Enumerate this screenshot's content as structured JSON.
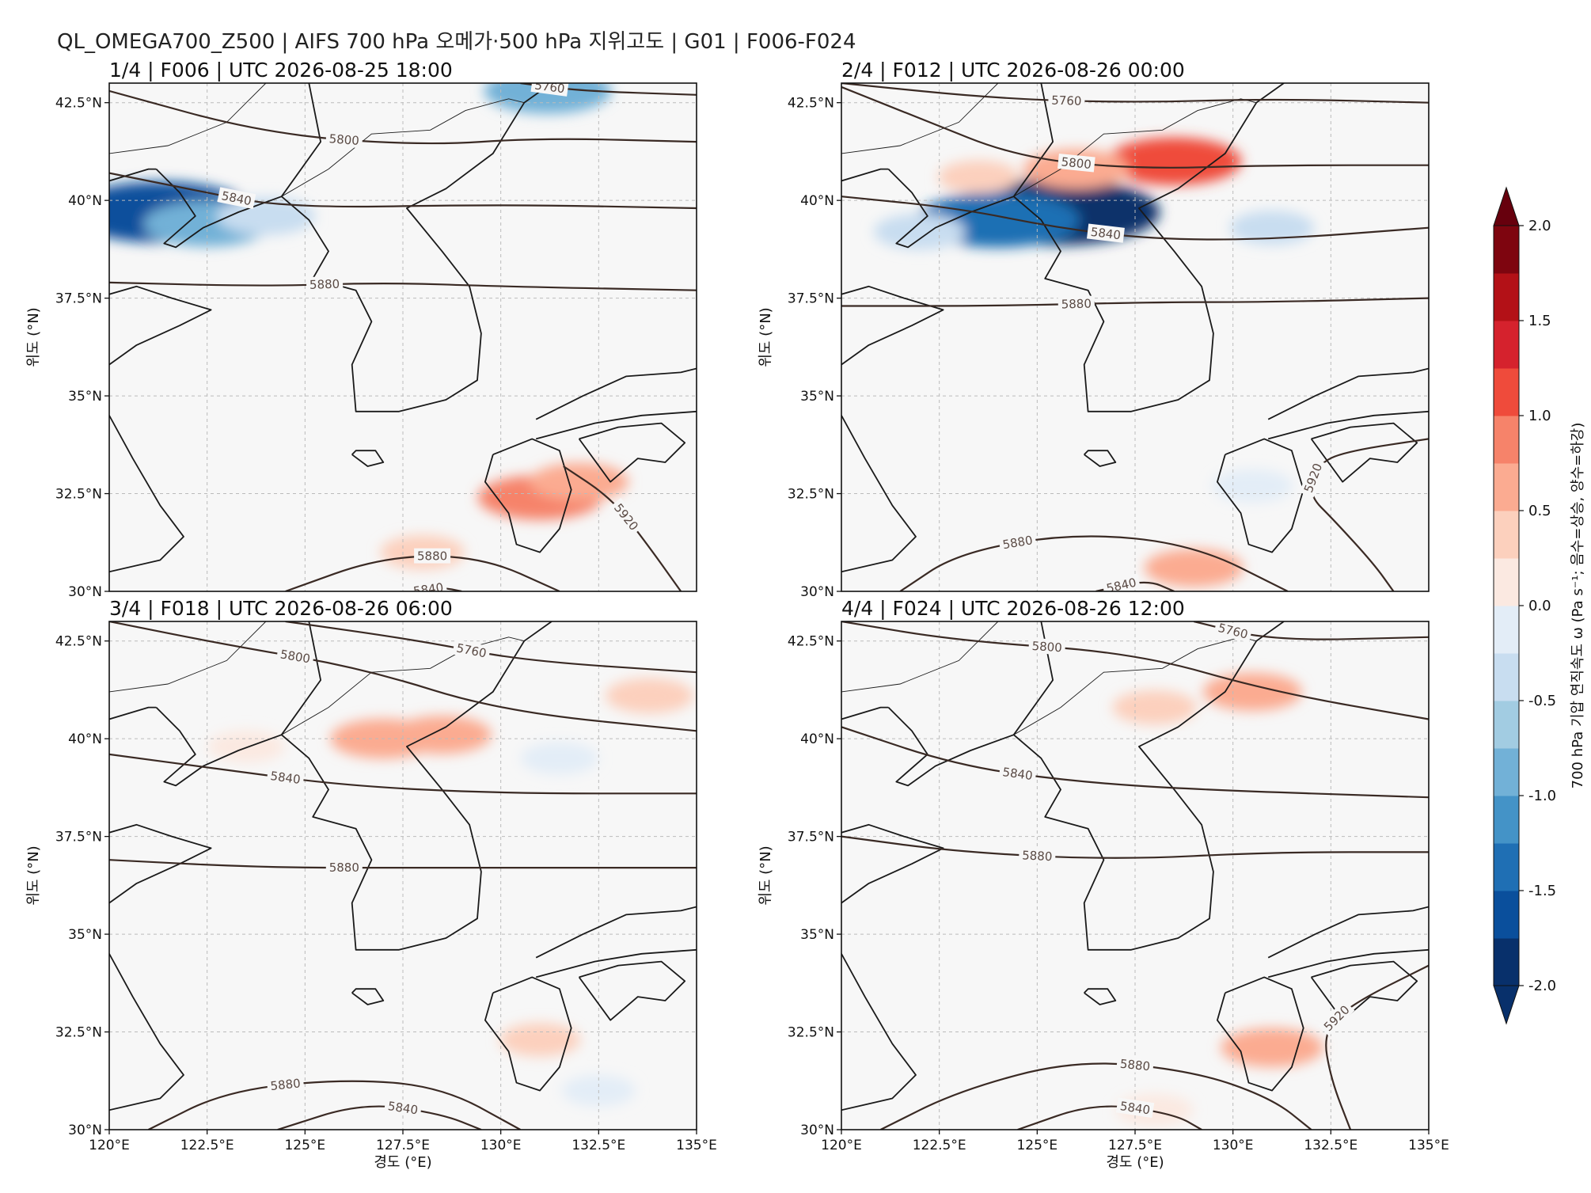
{
  "figure": {
    "suptitle": "QL_OMEGA700_Z500 | AIFS 700 hPa 오메가·500 hPa 지위고도 | G01 | F006-F024"
  },
  "axes_labels": {
    "xlabel": "경도 (°E)",
    "ylabel": "위도 (°N)",
    "xticks": [
      "120°E",
      "122.5°E",
      "125°E",
      "127.5°E",
      "130°E",
      "132.5°E",
      "135°E"
    ],
    "yticks": [
      "30°N",
      "32.5°N",
      "35°N",
      "37.5°N",
      "40°N",
      "42.5°N"
    ]
  },
  "colorbar": {
    "label": "700 hPa 기압 연직속도 ω (Pa s⁻¹; 음수=상승, 양수=하강)",
    "ticks": [
      "-2.0",
      "-1.5",
      "-1.0",
      "-0.5",
      "0.0",
      "0.5",
      "1.0",
      "1.5",
      "2.0"
    ]
  },
  "chart_data": [
    {
      "type": "heatmap",
      "title": "1/4 | F006 | UTC 2026-08-25 18:00",
      "xlim": [
        120,
        135
      ],
      "ylim": [
        30,
        43
      ],
      "z500_contours": [
        {
          "level": 5760,
          "label": "5760",
          "points": [
            [
              130.5,
              43
            ],
            [
              132,
              42.8
            ],
            [
              135,
              42.7
            ]
          ]
        },
        {
          "level": 5800,
          "label": "5800",
          "points": [
            [
              120,
              42.8
            ],
            [
              124,
              41.7
            ],
            [
              128,
              41.4
            ],
            [
              131,
              41.6
            ],
            [
              135,
              41.5
            ]
          ]
        },
        {
          "level": 5840,
          "label": "5840",
          "points": [
            [
              120,
              40.7
            ],
            [
              122,
              40.3
            ],
            [
              124.5,
              39.8
            ],
            [
              130,
              39.9
            ],
            [
              135,
              39.8
            ]
          ]
        },
        {
          "level": 5880,
          "label": "5880",
          "points": [
            [
              120,
              37.9
            ],
            [
              124,
              37.8
            ],
            [
              127,
              37.9
            ],
            [
              130,
              37.8
            ],
            [
              135,
              37.7
            ]
          ]
        },
        {
          "level": 5920,
          "label": "5920",
          "points": [
            [
              131.6,
              33.2
            ],
            [
              132.8,
              32.4
            ],
            [
              133.6,
              31.4
            ],
            [
              134.6,
              30
            ]
          ]
        },
        {
          "level": 5880,
          "label": "5880",
          "points": [
            [
              124.5,
              30
            ],
            [
              127,
              30.9
            ],
            [
              129.5,
              30.9
            ],
            [
              131.5,
              30
            ]
          ]
        },
        {
          "level": 5840,
          "label": "5840",
          "points": [
            [
              127.8,
              30
            ],
            [
              128.5,
              30.1
            ],
            [
              129,
              30
            ]
          ]
        }
      ],
      "omega_features": [
        {
          "lon": 121.3,
          "lat": 39.7,
          "omega": -1.7
        },
        {
          "lon": 122.5,
          "lat": 39.4,
          "omega": -0.9
        },
        {
          "lon": 124.0,
          "lat": 39.6,
          "omega": -0.5
        },
        {
          "lon": 131.2,
          "lat": 42.8,
          "omega": -0.9
        },
        {
          "lon": 131.0,
          "lat": 32.4,
          "omega": 0.85
        },
        {
          "lon": 132.0,
          "lat": 32.8,
          "omega": 0.5
        },
        {
          "lon": 128.0,
          "lat": 31.0,
          "omega": 0.3
        }
      ]
    },
    {
      "type": "heatmap",
      "title": "2/4 | F012 | UTC 2026-08-26 00:00",
      "xlim": [
        120,
        135
      ],
      "ylim": [
        30,
        43
      ],
      "z500_contours": [
        {
          "level": 5760,
          "label": "5760",
          "points": [
            [
              120,
              43
            ],
            [
              124,
              42.6
            ],
            [
              127.5,
              42.5
            ],
            [
              131,
              42.6
            ],
            [
              135,
              42.5
            ]
          ]
        },
        {
          "level": 5800,
          "label": "5800",
          "points": [
            [
              120,
              42.9
            ],
            [
              122,
              42.1
            ],
            [
              124.5,
              41.1
            ],
            [
              127.5,
              40.8
            ],
            [
              131,
              40.9
            ],
            [
              135,
              40.9
            ]
          ]
        },
        {
          "level": 5840,
          "label": "5840",
          "points": [
            [
              120,
              40.1
            ],
            [
              123,
              39.8
            ],
            [
              125.5,
              39.3
            ],
            [
              128,
              39
            ],
            [
              131,
              39
            ],
            [
              135,
              39.3
            ]
          ]
        },
        {
          "level": 5880,
          "label": "5880",
          "points": [
            [
              120,
              37.3
            ],
            [
              124,
              37.3
            ],
            [
              128,
              37.4
            ],
            [
              131,
              37.4
            ],
            [
              135,
              37.5
            ]
          ]
        },
        {
          "level": 5920,
          "label": "5920",
          "points": [
            [
              135,
              33.9
            ],
            [
              133,
              33.6
            ],
            [
              132.2,
              33.3
            ],
            [
              131.9,
              32.5
            ],
            [
              132.6,
              31.8
            ],
            [
              133.6,
              30.7
            ],
            [
              134.1,
              30
            ]
          ]
        },
        {
          "level": 5880,
          "label": "5880",
          "points": [
            [
              121.5,
              30
            ],
            [
              123,
              31
            ],
            [
              126,
              31.5
            ],
            [
              129,
              31.2
            ],
            [
              131.4,
              30
            ]
          ]
        },
        {
          "level": 5840,
          "label": "5840",
          "points": [
            [
              126.5,
              30
            ],
            [
              127.8,
              30.3
            ],
            [
              128.5,
              30
            ]
          ]
        }
      ],
      "omega_features": [
        {
          "lon": 125.5,
          "lat": 39.7,
          "omega": -2.0
        },
        {
          "lon": 124.0,
          "lat": 39.5,
          "omega": -1.4
        },
        {
          "lon": 122.0,
          "lat": 39.2,
          "omega": -0.4
        },
        {
          "lon": 131.0,
          "lat": 39.3,
          "omega": -0.3
        },
        {
          "lon": 128.5,
          "lat": 41.0,
          "omega": 1.0
        },
        {
          "lon": 126.0,
          "lat": 40.8,
          "omega": 0.6
        },
        {
          "lon": 123.5,
          "lat": 40.6,
          "omega": 0.25
        },
        {
          "lon": 129.0,
          "lat": 30.6,
          "omega": 0.5
        },
        {
          "lon": 130.5,
          "lat": 32.7,
          "omega": -0.25
        }
      ]
    },
    {
      "type": "heatmap",
      "title": "3/4 | F018 | UTC 2026-08-26 06:00",
      "xlim": [
        120,
        135
      ],
      "ylim": [
        30,
        43
      ],
      "z500_contours": [
        {
          "level": 5760,
          "label": "5760",
          "points": [
            [
              124.5,
              43
            ],
            [
              128,
              42.5
            ],
            [
              130.5,
              42
            ],
            [
              135,
              41.7
            ]
          ]
        },
        {
          "level": 5800,
          "label": "5800",
          "points": [
            [
              120,
              43
            ],
            [
              123,
              42.4
            ],
            [
              126.5,
              41.8
            ],
            [
              130,
              40.7
            ],
            [
              135,
              40.2
            ]
          ]
        },
        {
          "level": 5840,
          "label": "5840",
          "points": [
            [
              120,
              39.6
            ],
            [
              123,
              39.2
            ],
            [
              126,
              38.8
            ],
            [
              130,
              38.6
            ],
            [
              135,
              38.6
            ]
          ]
        },
        {
          "level": 5880,
          "label": "5880",
          "points": [
            [
              120,
              36.9
            ],
            [
              124,
              36.7
            ],
            [
              128,
              36.7
            ],
            [
              131,
              36.7
            ],
            [
              135,
              36.7
            ]
          ]
        },
        {
          "level": 5880,
          "label": "5880",
          "points": [
            [
              121,
              30
            ],
            [
              123,
              31
            ],
            [
              126,
              31.3
            ],
            [
              128.5,
              31.1
            ],
            [
              130.5,
              30
            ]
          ]
        },
        {
          "level": 5840,
          "label": "5840",
          "points": [
            [
              124.3,
              30
            ],
            [
              126.5,
              30.7
            ],
            [
              128.5,
              30.4
            ],
            [
              129.5,
              30
            ]
          ]
        }
      ],
      "omega_features": [
        {
          "lon": 128.5,
          "lat": 40.1,
          "omega": 0.5
        },
        {
          "lon": 127.0,
          "lat": 40.0,
          "omega": 0.6
        },
        {
          "lon": 133.8,
          "lat": 41.1,
          "omega": 0.35
        },
        {
          "lon": 123.5,
          "lat": 39.8,
          "omega": 0.2
        },
        {
          "lon": 131.5,
          "lat": 39.5,
          "omega": -0.2
        },
        {
          "lon": 131.0,
          "lat": 32.3,
          "omega": 0.25
        },
        {
          "lon": 132.5,
          "lat": 31.0,
          "omega": -0.15
        }
      ]
    },
    {
      "type": "heatmap",
      "title": "4/4 | F024 | UTC 2026-08-26 12:00",
      "xlim": [
        120,
        135
      ],
      "ylim": [
        30,
        43
      ],
      "z500_contours": [
        {
          "level": 5760,
          "label": "5760",
          "points": [
            [
              129,
              43
            ],
            [
              131,
              42.5
            ],
            [
              135,
              42.6
            ]
          ]
        },
        {
          "level": 5800,
          "label": "5800",
          "points": [
            [
              120,
              43
            ],
            [
              123,
              42.5
            ],
            [
              127.5,
              42.2
            ],
            [
              131,
              41.2
            ],
            [
              135,
              40.5
            ]
          ]
        },
        {
          "level": 5840,
          "label": "5840",
          "points": [
            [
              120,
              40.3
            ],
            [
              123,
              39.3
            ],
            [
              126,
              38.9
            ],
            [
              129,
              38.7
            ],
            [
              135,
              38.5
            ]
          ]
        },
        {
          "level": 5880,
          "label": "5880",
          "points": [
            [
              120,
              37.5
            ],
            [
              123,
              37.1
            ],
            [
              127,
              36.9
            ],
            [
              131,
              37.1
            ],
            [
              135,
              37.1
            ]
          ]
        },
        {
          "level": 5920,
          "label": "5920",
          "points": [
            [
              135,
              34.2
            ],
            [
              133,
              33.2
            ],
            [
              132.3,
              32.5
            ],
            [
              132.5,
              31.3
            ],
            [
              133,
              30
            ]
          ]
        },
        {
          "level": 5880,
          "label": "5880",
          "points": [
            [
              121,
              30
            ],
            [
              123,
              31
            ],
            [
              126,
              31.8
            ],
            [
              129,
              31.5
            ],
            [
              131,
              30.8
            ],
            [
              132,
              30
            ]
          ]
        },
        {
          "level": 5840,
          "label": "5840",
          "points": [
            [
              124.5,
              30
            ],
            [
              126.5,
              30.7
            ],
            [
              128.5,
              30.4
            ],
            [
              129.2,
              30
            ]
          ]
        }
      ],
      "omega_features": [
        {
          "lon": 130.5,
          "lat": 41.2,
          "omega": 0.5
        },
        {
          "lon": 128.0,
          "lat": 40.8,
          "omega": 0.3
        },
        {
          "lon": 131.0,
          "lat": 32.1,
          "omega": 0.55
        },
        {
          "lon": 128.0,
          "lat": 30.5,
          "omega": 0.2
        }
      ]
    }
  ]
}
